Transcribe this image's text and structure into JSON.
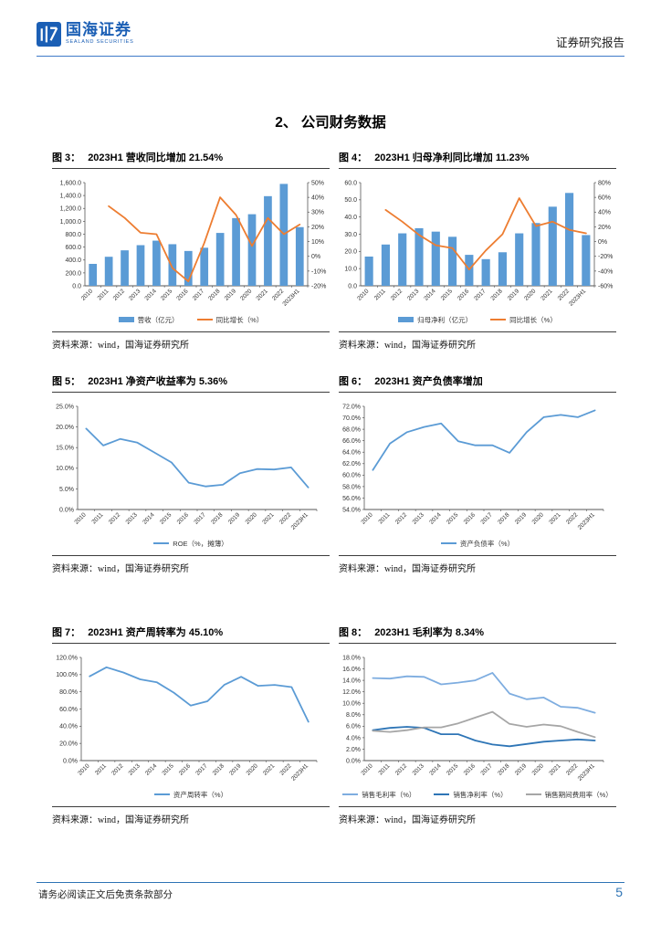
{
  "header": {
    "logo_text": "国海证券",
    "logo_subtext": "SEALAND SECURITIES",
    "report_type": "证券研究报告"
  },
  "section_title": "2、 公司财务数据",
  "colors": {
    "brand": "#1b5fb5",
    "bar_blue": "#5B9BD5",
    "orange": "#ED7D31",
    "blue": "#5B9BD5",
    "light_blue": "#7EADE0",
    "dark_blue": "#2E75B6",
    "gray": "#A6A6A6"
  },
  "figures": [
    {
      "title_label": "图 3：",
      "title": "2023H1 营收同比增加 21.54%",
      "source": "资料来源：wind，国海证券研究所",
      "chart_data": {
        "type": "bar",
        "categories": [
          "2010",
          "2011",
          "2012",
          "2013",
          "2014",
          "2015",
          "2016",
          "2017",
          "2018",
          "2019",
          "2020",
          "2021",
          "2022",
          "2023H1"
        ],
        "series": [
          {
            "name": "营收（亿元）",
            "kind": "bar",
            "axis": "left",
            "color": "bar_blue",
            "values": [
              340,
              450,
              550,
              630,
              700,
              645,
              540,
              590,
              820,
              1050,
              1110,
              1390,
              1580,
              910
            ]
          },
          {
            "name": "同比增长（%）",
            "kind": "line",
            "axis": "right",
            "color": "orange",
            "values": [
              null,
              34,
              26,
              16,
              15,
              -8,
              -17,
              9,
              40,
              28,
              7,
              26,
              15,
              21.54
            ]
          }
        ],
        "left_axis": {
          "min": 0,
          "max": 1600,
          "step": 200,
          "decimals": 1,
          "thousands": true,
          "suffix": ""
        },
        "right_axis": {
          "min": -20,
          "max": 50,
          "step": 10,
          "decimals": 0,
          "suffix": "%"
        },
        "grid": false,
        "legend_position": "bottom"
      }
    },
    {
      "title_label": "图 4：",
      "title": "2023H1 归母净利同比增加 11.23%",
      "source": "资料来源：wind，国海证券研究所",
      "chart_data": {
        "type": "bar",
        "categories": [
          "2010",
          "2011",
          "2012",
          "2013",
          "2014",
          "2015",
          "2016",
          "2017",
          "2018",
          "2019",
          "2020",
          "2021",
          "2022",
          "2023H1"
        ],
        "series": [
          {
            "name": "归母净利（亿元）",
            "kind": "bar",
            "axis": "left",
            "color": "bar_blue",
            "values": [
              17,
              24,
              30.5,
              33.5,
              31.5,
              28.5,
              18,
              15.5,
              19.5,
              30.5,
              36.5,
              46,
              54,
              29.5
            ]
          },
          {
            "name": "同比增长（%）",
            "kind": "line",
            "axis": "right",
            "color": "orange",
            "values": [
              null,
              43,
              27,
              9,
              -5,
              -9,
              -38,
              -12,
              10,
              59,
              21,
              27,
              16,
              11.23
            ]
          }
        ],
        "left_axis": {
          "min": 0,
          "max": 60,
          "step": 10,
          "decimals": 1,
          "thousands": false,
          "suffix": ""
        },
        "right_axis": {
          "min": -60,
          "max": 80,
          "step": 20,
          "decimals": 0,
          "suffix": "%"
        },
        "grid": false,
        "legend_position": "bottom"
      }
    },
    {
      "title_label": "图 5：",
      "title": "2023H1 净资产收益率为 5.36%",
      "source": "资料来源：wind，国海证券研究所",
      "chart_data": {
        "type": "line",
        "categories": [
          "2010",
          "2011",
          "2012",
          "2013",
          "2014",
          "2015",
          "2016",
          "2017",
          "2018",
          "2019",
          "2020",
          "2021",
          "2022",
          "2023H1"
        ],
        "series": [
          {
            "name": "ROE（%，摊薄）",
            "kind": "line",
            "axis": "left",
            "color": "blue",
            "values": [
              19.6,
              15.5,
              17.1,
              16.2,
              13.8,
              11.4,
              6.5,
              5.6,
              6.0,
              8.8,
              9.8,
              9.7,
              10.2,
              5.36
            ]
          }
        ],
        "left_axis": {
          "min": 0,
          "max": 25,
          "step": 5,
          "decimals": 1,
          "thousands": false,
          "suffix": "%"
        },
        "grid": false,
        "legend_position": "bottom"
      }
    },
    {
      "title_label": "图 6：",
      "title": "2023H1 资产负债率增加",
      "source": "资料来源：wind，国海证券研究所",
      "chart_data": {
        "type": "line",
        "categories": [
          "2010",
          "2011",
          "2012",
          "2013",
          "2014",
          "2015",
          "2016",
          "2017",
          "2018",
          "2019",
          "2020",
          "2021",
          "2022",
          "2023H1"
        ],
        "series": [
          {
            "name": "资产负债率（%）",
            "kind": "line",
            "axis": "left",
            "color": "blue",
            "values": [
              60.9,
              65.5,
              67.5,
              68.4,
              69.0,
              65.9,
              65.2,
              65.2,
              63.9,
              67.5,
              70.1,
              70.5,
              70.1,
              71.3
            ]
          }
        ],
        "left_axis": {
          "min": 54,
          "max": 72,
          "step": 2,
          "decimals": 1,
          "thousands": false,
          "suffix": "%"
        },
        "grid": false,
        "legend_position": "bottom"
      }
    },
    {
      "title_label": "图 7：",
      "title": "2023H1 资产周转率为 45.10%",
      "source": "资料来源：wind，国海证券研究所",
      "chart_data": {
        "type": "line",
        "categories": [
          "2010",
          "2011",
          "2012",
          "2013",
          "2014",
          "2015",
          "2016",
          "2017",
          "2018",
          "2019",
          "2020",
          "2021",
          "2022",
          "2023H1"
        ],
        "series": [
          {
            "name": "资产周转率（%）",
            "kind": "line",
            "axis": "left",
            "color": "blue",
            "values": [
              98,
              108.5,
              102.5,
              94.5,
              91,
              79,
              64,
              69,
              88,
              97.5,
              87,
              88,
              85.5,
              45.1
            ]
          }
        ],
        "left_axis": {
          "min": 0,
          "max": 120,
          "step": 20,
          "decimals": 1,
          "thousands": false,
          "suffix": "%"
        },
        "grid": false,
        "legend_position": "bottom"
      }
    },
    {
      "title_label": "图 8：",
      "title": "2023H1 毛利率为 8.34%",
      "source": "资料来源：wind，国海证券研究所",
      "chart_data": {
        "type": "line",
        "categories": [
          "2010",
          "2011",
          "2012",
          "2013",
          "2014",
          "2015",
          "2016",
          "2017",
          "2018",
          "2019",
          "2020",
          "2021",
          "2022",
          "2023H1"
        ],
        "series": [
          {
            "name": "销售毛利率（%）",
            "kind": "line",
            "axis": "left",
            "color": "light_blue",
            "values": [
              14.4,
              14.3,
              14.7,
              14.6,
              13.3,
              13.6,
              14.0,
              15.3,
              11.7,
              10.7,
              11.0,
              9.4,
              9.2,
              8.34
            ]
          },
          {
            "name": "销售净利率（%）",
            "kind": "line",
            "axis": "left",
            "color": "dark_blue",
            "values": [
              5.3,
              5.7,
              5.9,
              5.7,
              4.6,
              4.6,
              3.5,
              2.8,
              2.5,
              2.9,
              3.3,
              3.5,
              3.7,
              3.5
            ]
          },
          {
            "name": "销售期间费用率（%）",
            "kind": "line",
            "axis": "left",
            "color": "gray",
            "values": [
              5.2,
              5.0,
              5.3,
              5.8,
              5.8,
              6.5,
              7.5,
              8.5,
              6.4,
              5.9,
              6.3,
              6.0,
              5.0,
              4.1
            ]
          }
        ],
        "left_axis": {
          "min": 0,
          "max": 18,
          "step": 2,
          "decimals": 1,
          "thousands": false,
          "suffix": "%"
        },
        "grid": false,
        "legend_position": "bottom"
      }
    }
  ],
  "footer": {
    "disclaimer": "请务必阅读正文后免责条款部分",
    "page": "5"
  }
}
